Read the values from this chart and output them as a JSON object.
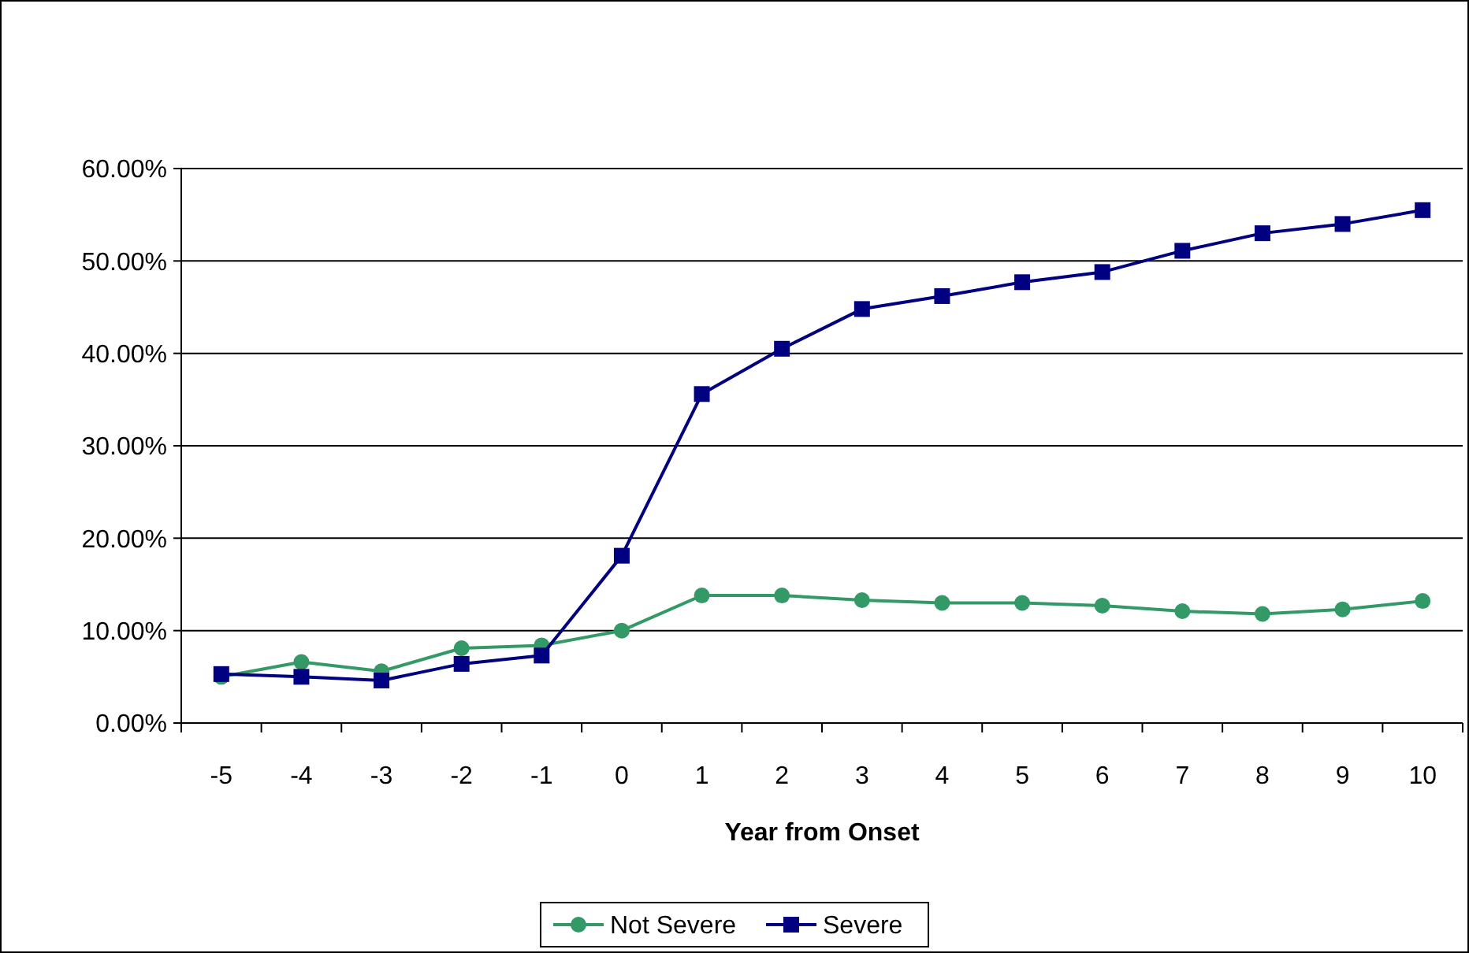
{
  "chart_data": {
    "type": "line",
    "xlabel": "Year from Onset",
    "categories": [
      "-5",
      "-4",
      "-3",
      "-2",
      "-1",
      "0",
      "1",
      "2",
      "3",
      "4",
      "5",
      "6",
      "7",
      "8",
      "9",
      "10"
    ],
    "series": [
      {
        "name": "Not Severe",
        "color": "#339966",
        "marker": "circle",
        "values": [
          5.0,
          6.6,
          5.6,
          8.1,
          8.4,
          10.0,
          13.8,
          13.8,
          13.3,
          13.0,
          13.0,
          12.7,
          12.1,
          11.8,
          12.3,
          13.2
        ]
      },
      {
        "name": "Severe",
        "color": "#000080",
        "marker": "square",
        "values": [
          5.3,
          5.0,
          4.6,
          6.4,
          7.3,
          18.1,
          35.6,
          40.5,
          44.8,
          46.2,
          47.7,
          48.8,
          51.1,
          53.0,
          54.0,
          55.5
        ]
      }
    ],
    "ylim": [
      0,
      60
    ],
    "yticks": [
      {
        "value": 0,
        "label": "0.00%"
      },
      {
        "value": 10,
        "label": "10.00%"
      },
      {
        "value": 20,
        "label": "20.00%"
      },
      {
        "value": 30,
        "label": "30.00%"
      },
      {
        "value": 40,
        "label": "40.00%"
      },
      {
        "value": 50,
        "label": "50.00%"
      },
      {
        "value": 60,
        "label": "60.00%"
      }
    ],
    "grid": "y",
    "legend": "bottom"
  }
}
